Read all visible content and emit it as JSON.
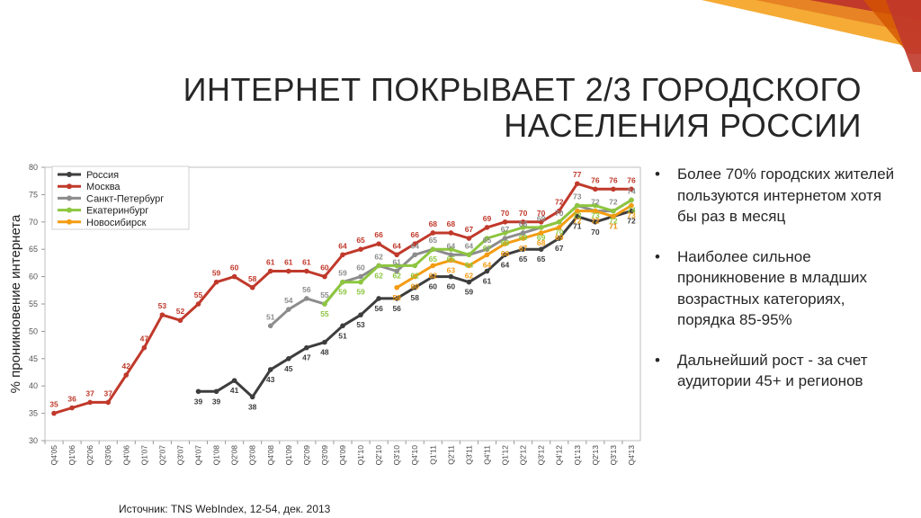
{
  "title": {
    "line1": "ИНТЕРНЕТ ПОКРЫВАЕТ 2/3 ГОРОДСКОГО",
    "line2": "НАСЕЛЕНИЯ РОССИИ"
  },
  "bullets": [
    "Более 70% городских жителей пользуются интернетом хотя бы раз в месяц",
    "Наиболее сильное проникновение в младших возрастных категориях, порядка 85-95%",
    "Дальнейший рост - за счет аудитории 45+ и регионов"
  ],
  "bullet_glyph": "•",
  "source": "Источник: TNS WebIndex, 12-54, дек. 2013",
  "colors": {
    "accent_red": "#c0392b",
    "accent_orange": "#f39c12"
  },
  "chart_data": {
    "type": "line",
    "ylabel": "% проникновение интернета",
    "ylim": [
      30,
      80
    ],
    "yticks": [
      30,
      35,
      40,
      45,
      50,
      55,
      60,
      65,
      70,
      75,
      80
    ],
    "grid": false,
    "legend_position": "top-left",
    "categories": [
      "Q4'05",
      "Q1'06",
      "Q2'06",
      "Q3'06",
      "Q4'06",
      "Q1'07",
      "Q2'07",
      "Q3'07",
      "Q4'07",
      "Q1'08",
      "Q2'08",
      "Q3'08",
      "Q4'08",
      "Q1'09",
      "Q2'09",
      "Q3'09",
      "Q4'09",
      "Q1'10",
      "Q2'10",
      "Q3'10",
      "Q4'10",
      "Q1'11",
      "Q2'11",
      "Q3'11",
      "Q4'11",
      "Q1'12",
      "Q2'12",
      "Q3'12",
      "Q4'12",
      "Q1'13",
      "Q2'13",
      "Q3'13",
      "Q4'13"
    ],
    "series": [
      {
        "name": "Россия",
        "color": "#3d3d3d",
        "label_pos": "below",
        "values": [
          null,
          null,
          null,
          null,
          null,
          null,
          null,
          null,
          39,
          39,
          41,
          38,
          43,
          45,
          47,
          48,
          51,
          53,
          56,
          56,
          58,
          60,
          60,
          59,
          61,
          64,
          65,
          65,
          67,
          71,
          70,
          71,
          72
        ]
      },
      {
        "name": "Москва",
        "color": "#c0392b",
        "label_pos": "above",
        "values": [
          35,
          36,
          37,
          37,
          42,
          47,
          53,
          52,
          55,
          59,
          60,
          58,
          61,
          61,
          61,
          60,
          64,
          65,
          66,
          64,
          66,
          68,
          68,
          67,
          69,
          70,
          70,
          70,
          72,
          77,
          76,
          76,
          76
        ]
      },
      {
        "name": "Санкт-Петербург",
        "color": "#8c8c8c",
        "label_pos": "above",
        "values": [
          null,
          null,
          null,
          null,
          null,
          null,
          null,
          null,
          null,
          null,
          null,
          null,
          51,
          54,
          56,
          55,
          59,
          60,
          62,
          61,
          64,
          65,
          64,
          64,
          65,
          67,
          68,
          69,
          70,
          73,
          72,
          72,
          74
        ]
      },
      {
        "name": "Екатеринбург",
        "color": "#8dc63f",
        "label_pos": "below",
        "values": [
          null,
          null,
          null,
          null,
          null,
          null,
          null,
          null,
          null,
          null,
          null,
          null,
          null,
          null,
          null,
          55,
          59,
          59,
          62,
          62,
          62,
          65,
          65,
          64,
          67,
          68,
          69,
          69,
          70,
          73,
          73,
          72,
          74
        ]
      },
      {
        "name": "Новосибирск",
        "color": "#f39c12",
        "label_pos": "below",
        "values": [
          null,
          null,
          null,
          null,
          null,
          null,
          null,
          null,
          null,
          null,
          null,
          null,
          null,
          null,
          null,
          null,
          null,
          null,
          null,
          58,
          60,
          62,
          63,
          62,
          64,
          66,
          67,
          68,
          69,
          72,
          72,
          71,
          73
        ]
      }
    ]
  }
}
